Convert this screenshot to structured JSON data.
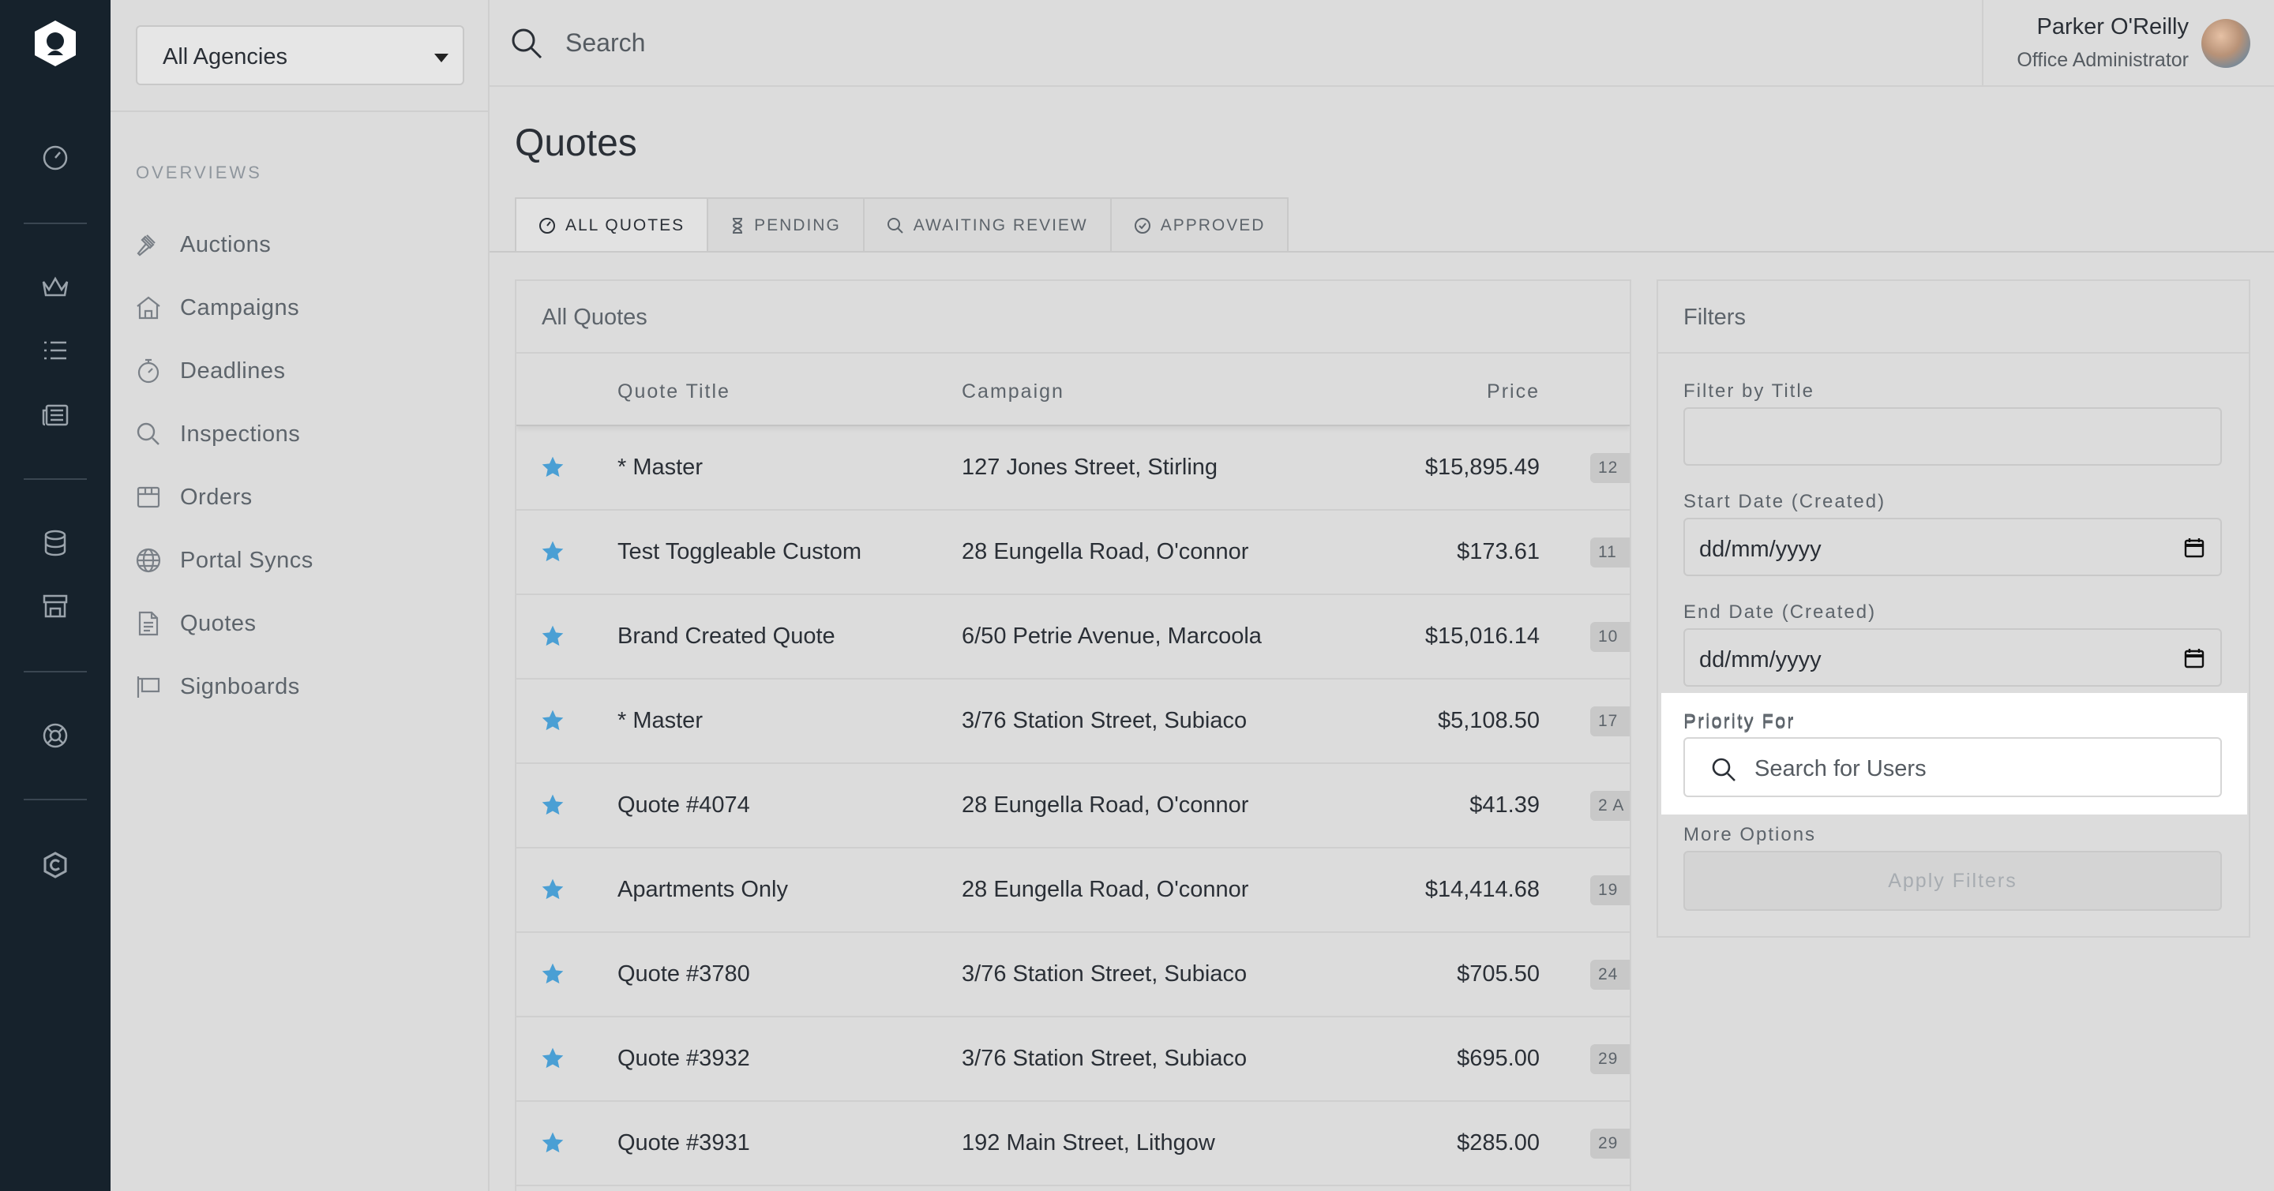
{
  "rail": {
    "icons": [
      "logo-icon",
      "dashboard-icon",
      "crown-icon",
      "list-icon",
      "newspaper-icon",
      "database-icon",
      "store-icon",
      "support-icon",
      "brand-icon"
    ]
  },
  "sidebar": {
    "agency_select": "All Agencies",
    "section_label": "OVERVIEWS",
    "items": [
      {
        "label": "Auctions",
        "icon": "gavel-icon"
      },
      {
        "label": "Campaigns",
        "icon": "home-icon"
      },
      {
        "label": "Deadlines",
        "icon": "stopwatch-icon"
      },
      {
        "label": "Inspections",
        "icon": "search-icon"
      },
      {
        "label": "Orders",
        "icon": "box-icon"
      },
      {
        "label": "Portal Syncs",
        "icon": "globe-icon"
      },
      {
        "label": "Quotes",
        "icon": "document-icon"
      },
      {
        "label": "Signboards",
        "icon": "signboard-icon"
      }
    ]
  },
  "header": {
    "search_placeholder": "Search",
    "user_name": "Parker O'Reilly",
    "user_role": "Office Administrator"
  },
  "page": {
    "title": "Quotes",
    "tabs": [
      {
        "label": "ALL QUOTES",
        "icon": "dashboard-icon",
        "active": true
      },
      {
        "label": "PENDING",
        "icon": "hourglass-icon",
        "active": false
      },
      {
        "label": "AWAITING REVIEW",
        "icon": "search-icon",
        "active": false
      },
      {
        "label": "APPROVED",
        "icon": "check-circle-icon",
        "active": false
      }
    ]
  },
  "quotes": {
    "panel_title": "All Quotes",
    "columns": [
      "Quote Title",
      "Campaign",
      "Price"
    ],
    "rows": [
      {
        "title": "* Master",
        "campaign": "127 Jones Street, Stirling",
        "price": "$15,895.49",
        "extra": "12"
      },
      {
        "title": "Test Toggleable Custom",
        "campaign": "28 Eungella Road, O'connor",
        "price": "$173.61",
        "extra": "11"
      },
      {
        "title": "Brand Created Quote",
        "campaign": "6/50 Petrie Avenue, Marcoola",
        "price": "$15,016.14",
        "extra": "10"
      },
      {
        "title": "* Master",
        "campaign": "3/76 Station Street, Subiaco",
        "price": "$5,108.50",
        "extra": "17"
      },
      {
        "title": "Quote #4074",
        "campaign": "28 Eungella Road, O'connor",
        "price": "$41.39",
        "extra": "2 A"
      },
      {
        "title": "Apartments Only",
        "campaign": "28 Eungella Road, O'connor",
        "price": "$14,414.68",
        "extra": "19"
      },
      {
        "title": "Quote #3780",
        "campaign": "3/76 Station Street, Subiaco",
        "price": "$705.50",
        "extra": "24"
      },
      {
        "title": "Quote #3932",
        "campaign": "3/76 Station Street, Subiaco",
        "price": "$695.00",
        "extra": "29"
      },
      {
        "title": "Quote #3931",
        "campaign": "192 Main Street, Lithgow",
        "price": "$285.00",
        "extra": "29"
      }
    ]
  },
  "filters": {
    "title": "Filters",
    "filter_by_title_label": "Filter by Title",
    "filter_by_title_value": "",
    "start_date_label": "Start Date (Created)",
    "start_date_value": "dd/mm/yyyy",
    "end_date_label": "End Date (Created)",
    "end_date_value": "dd/mm/yyyy",
    "priority_label": "Priority For",
    "priority_placeholder": "Search for Users",
    "more_options_label": "More Options",
    "apply_label": "Apply Filters"
  },
  "colors": {
    "rail_bg": "#16222c",
    "page_bg": "#dcdcdc",
    "star": "#4a9fd4",
    "text": "#2a2f36",
    "muted": "#5d646b"
  }
}
